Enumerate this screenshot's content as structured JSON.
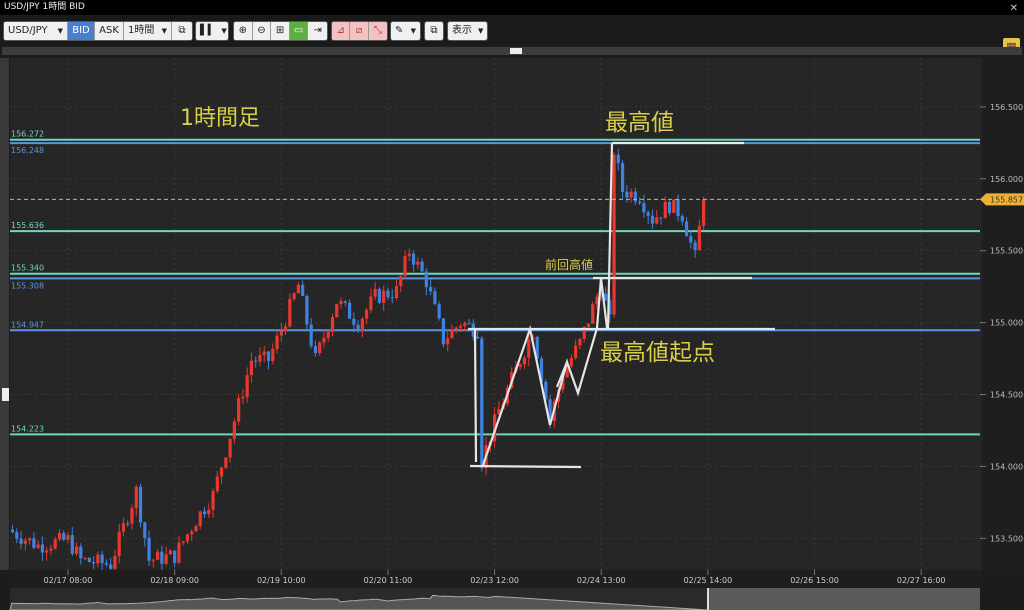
{
  "window": {
    "title": "USD/JPY 1時間 BID",
    "close_icon": "close-icon"
  },
  "toolbar": {
    "symbol": "USD/JPY",
    "bid": "BID",
    "ask": "ASK",
    "timeframe": "1時間",
    "display_label": "表示",
    "icons": [
      "link-icon",
      "candlestick-type-icon",
      "zoom-in-icon",
      "zoom-out-icon",
      "fit-icon",
      "auto-scroll-icon",
      "jump-latest-icon",
      "add-indicator-icon",
      "indicator-settings-icon",
      "remove-indicator-icon",
      "drawing-pen-icon",
      "screenshot-icon",
      "layout-icon"
    ]
  },
  "colors": {
    "up": "#e8382f",
    "down": "#3f82e0",
    "teal_line": "#6fd6c0",
    "blue_line": "#5b93e6",
    "last_price": "#f0b030",
    "annotation_text": "#d8cf46",
    "annotation_line": "#e8e8e8"
  },
  "annotations": {
    "timeframe_label": "1時間足",
    "highest": "最高値",
    "previous_high": "前回高値",
    "highest_origin": "最高値起点"
  },
  "chart_data": {
    "type": "candlestick",
    "yticks": [
      "156.500",
      "156.000",
      "155.500",
      "155.000",
      "154.500",
      "154.000",
      "153.500"
    ],
    "ylim": [
      153.28,
      156.84
    ],
    "xticks": [
      "02/17 08:00",
      "02/18 09:00",
      "02/19 10:00",
      "02/20 11:00",
      "02/23 12:00",
      "02/24 13:00",
      "02/25 14:00",
      "02/26 15:00",
      "02/27 16:00"
    ],
    "last_price": "155.857",
    "hlines": [
      {
        "label": "156.272",
        "price": 156.272,
        "color": "teal"
      },
      {
        "label": "156.248",
        "price": 156.248,
        "color": "blue"
      },
      {
        "label": "155.636",
        "price": 155.636,
        "color": "teal"
      },
      {
        "label": "155.340",
        "price": 155.34,
        "color": "teal"
      },
      {
        "label": "155.308",
        "price": 155.308,
        "color": "blue"
      },
      {
        "label": "154.947",
        "price": 154.947,
        "color": "blue"
      },
      {
        "label": "154.223",
        "price": 154.223,
        "color": "teal"
      }
    ],
    "price_path": [
      [
        "02/16 18:00",
        153.56
      ],
      [
        "02/17 01:00",
        153.45
      ],
      [
        "02/17 08:00",
        153.49
      ],
      [
        "02/17 11:00",
        153.35
      ],
      [
        "02/17 18:00",
        153.32
      ],
      [
        "02/18 00:00",
        153.83
      ],
      [
        "02/18 03:00",
        153.35
      ],
      [
        "02/18 09:00",
        153.38
      ],
      [
        "02/18 14:00",
        153.63
      ],
      [
        "02/18 18:00",
        153.8
      ],
      [
        "02/18 23:00",
        154.32
      ],
      [
        "02/19 03:00",
        154.74
      ],
      [
        "02/19 07:00",
        154.74
      ],
      [
        "02/19 10:00",
        154.95
      ],
      [
        "02/19 14:00",
        155.26
      ],
      [
        "02/19 18:00",
        154.74
      ],
      [
        "02/19 23:00",
        155.15
      ],
      [
        "02/20 04:00",
        155.0
      ],
      [
        "02/20 08:00",
        155.18
      ],
      [
        "02/20 13:00",
        155.22
      ],
      [
        "02/20 16:00",
        155.5
      ],
      [
        "02/20 20:00",
        155.29
      ],
      [
        "02/21 00:00",
        154.88
      ],
      [
        "02/21 04:00",
        155.0
      ],
      [
        "02/23 08:00",
        154.95
      ],
      [
        "02/23 09:00",
        154.04
      ],
      [
        "02/23 13:00",
        154.39
      ],
      [
        "02/23 18:00",
        154.74
      ],
      [
        "02/23 21:00",
        154.95
      ],
      [
        "02/24 01:00",
        154.32
      ],
      [
        "02/24 04:00",
        154.65
      ],
      [
        "02/24 08:00",
        154.86
      ],
      [
        "02/24 13:00",
        155.26
      ],
      [
        "02/24 15:00",
        155.0
      ],
      [
        "02/24 16:00",
        156.2
      ],
      [
        "02/24 18:00",
        155.92
      ],
      [
        "02/24 22:00",
        155.88
      ],
      [
        "02/25 01:00",
        155.72
      ],
      [
        "02/25 05:00",
        155.82
      ],
      [
        "02/25 08:00",
        155.75
      ],
      [
        "02/25 11:00",
        155.45
      ],
      [
        "02/25 13:00",
        155.857
      ]
    ]
  }
}
